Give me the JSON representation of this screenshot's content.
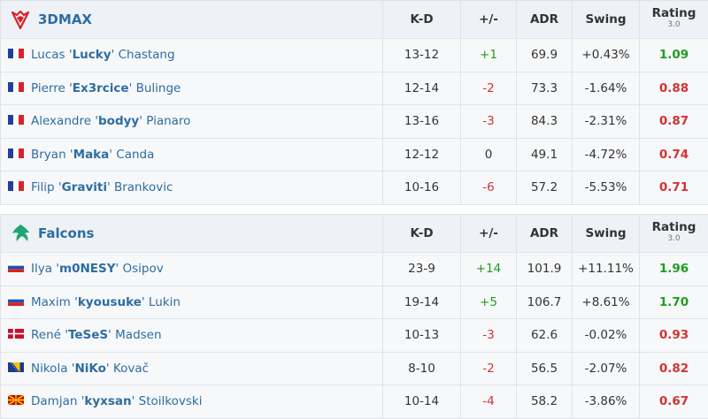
{
  "columns": {
    "kd": "K-D",
    "pm": "+/-",
    "adr": "ADR",
    "swing": "Swing",
    "rating": "Rating",
    "rating_sub": "3.0"
  },
  "colors": {
    "positive": "#1f9d1f",
    "negative": "#d33333",
    "link": "#2d6da3"
  },
  "teams": [
    {
      "name": "3DMAX",
      "logo": "3dmax-logo",
      "players": [
        {
          "first": "Lucas '",
          "nick": "Lucky",
          "last": "' Chastang",
          "flag": "france-flag",
          "kd": "13-12",
          "pm": "+1",
          "pm_sign": "pos",
          "adr": "69.9",
          "swing": "+0.43%",
          "rating": "1.09",
          "rating_sign": "good"
        },
        {
          "first": "Pierre '",
          "nick": "Ex3rcice",
          "last": "' Bulinge",
          "flag": "france-flag",
          "kd": "12-14",
          "pm": "-2",
          "pm_sign": "neg",
          "adr": "73.3",
          "swing": "-1.64%",
          "rating": "0.88",
          "rating_sign": "bad"
        },
        {
          "first": "Alexandre '",
          "nick": "bodyy",
          "last": "' Pianaro",
          "flag": "france-flag",
          "kd": "13-16",
          "pm": "-3",
          "pm_sign": "neg",
          "adr": "84.3",
          "swing": "-2.31%",
          "rating": "0.87",
          "rating_sign": "bad"
        },
        {
          "first": "Bryan '",
          "nick": "Maka",
          "last": "' Canda",
          "flag": "france-flag",
          "kd": "12-12",
          "pm": "0",
          "pm_sign": "zero",
          "adr": "49.1",
          "swing": "-4.72%",
          "rating": "0.74",
          "rating_sign": "bad"
        },
        {
          "first": "Filip '",
          "nick": "Graviti",
          "last": "' Brankovic",
          "flag": "france-flag",
          "kd": "10-16",
          "pm": "-6",
          "pm_sign": "neg",
          "adr": "57.2",
          "swing": "-5.53%",
          "rating": "0.71",
          "rating_sign": "bad"
        }
      ]
    },
    {
      "name": "Falcons",
      "logo": "falcons-logo",
      "players": [
        {
          "first": "Ilya '",
          "nick": "m0NESY",
          "last": "' Osipov",
          "flag": "russia-flag",
          "kd": "23-9",
          "pm": "+14",
          "pm_sign": "pos",
          "adr": "101.9",
          "swing": "+11.11%",
          "rating": "1.96",
          "rating_sign": "good"
        },
        {
          "first": "Maxim '",
          "nick": "kyousuke",
          "last": "' Lukin",
          "flag": "russia-flag",
          "kd": "19-14",
          "pm": "+5",
          "pm_sign": "pos",
          "adr": "106.7",
          "swing": "+8.61%",
          "rating": "1.70",
          "rating_sign": "good"
        },
        {
          "first": "René '",
          "nick": "TeSeS",
          "last": "' Madsen",
          "flag": "denmark-flag",
          "kd": "10-13",
          "pm": "-3",
          "pm_sign": "neg",
          "adr": "62.6",
          "swing": "-0.02%",
          "rating": "0.93",
          "rating_sign": "bad"
        },
        {
          "first": "Nikola '",
          "nick": "NiKo",
          "last": "' Kovač",
          "flag": "bosnia-flag",
          "kd": "8-10",
          "pm": "-2",
          "pm_sign": "neg",
          "adr": "56.5",
          "swing": "-2.07%",
          "rating": "0.82",
          "rating_sign": "bad"
        },
        {
          "first": "Damjan '",
          "nick": "kyxsan",
          "last": "' Stoilkovski",
          "flag": "north-macedonia-flag",
          "kd": "10-14",
          "pm": "-4",
          "pm_sign": "neg",
          "adr": "58.2",
          "swing": "-3.86%",
          "rating": "0.67",
          "rating_sign": "bad"
        }
      ]
    }
  ]
}
